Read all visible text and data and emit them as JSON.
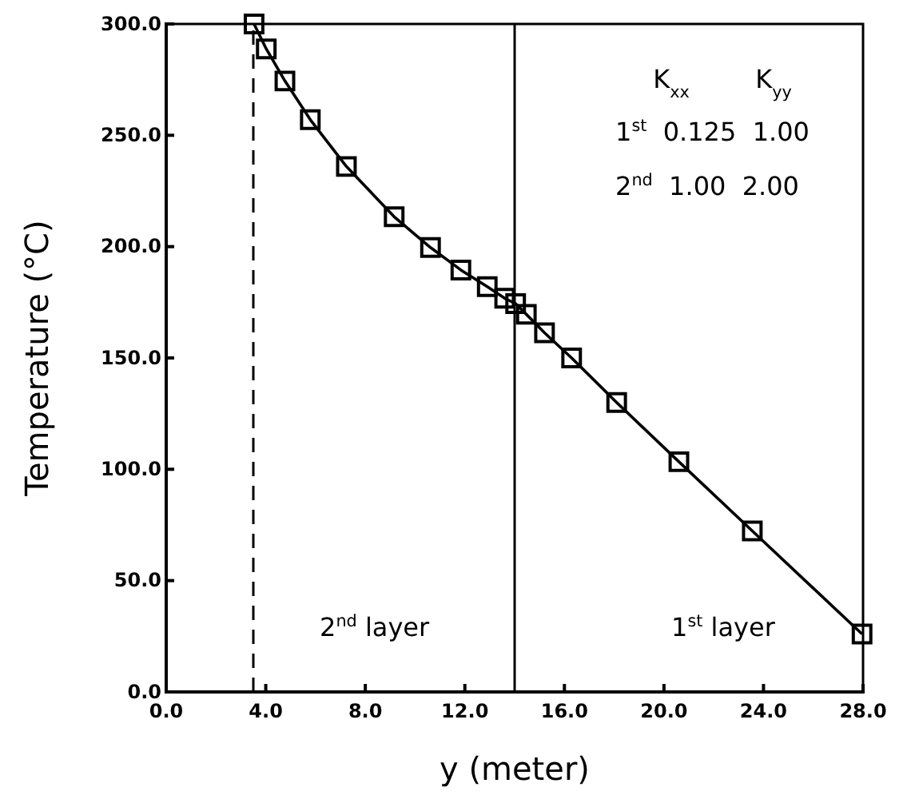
{
  "chart_data": {
    "type": "line",
    "xlabel": "y  (meter)",
    "ylabel": "Temperature  (°C)",
    "x": [
      3.53,
      4.02,
      4.77,
      5.79,
      7.24,
      9.16,
      10.62,
      11.84,
      12.9,
      13.6,
      14.04,
      14.47,
      15.2,
      16.29,
      18.1,
      20.6,
      23.55,
      27.96
    ],
    "series": [
      {
        "color": "#000000",
        "values": [
          300,
          288.8,
          274.4,
          257,
          236,
          213.4,
          199.6,
          189.5,
          182,
          176.8,
          174.4,
          169.6,
          161.3,
          150,
          130,
          103.4,
          72.3,
          26
        ]
      }
    ],
    "marker": "square",
    "line_style": "solid",
    "xlim": [
      0,
      28
    ],
    "ylim": [
      0,
      300
    ],
    "xticks": [
      {
        "value": 0,
        "label": "0.0"
      },
      {
        "value": 4,
        "label": "4.0"
      },
      {
        "value": 8,
        "label": "8.0"
      },
      {
        "value": 12,
        "label": "12.0"
      },
      {
        "value": 16,
        "label": "16.0"
      },
      {
        "value": 20,
        "label": "20.0"
      },
      {
        "value": 24,
        "label": "24.0"
      },
      {
        "value": 28,
        "label": "28.0"
      }
    ],
    "yticks": [
      {
        "value": 0,
        "label": "0.0"
      },
      {
        "value": 50,
        "label": "50.0"
      },
      {
        "value": 100,
        "label": "100.0"
      },
      {
        "value": 150,
        "label": "150.0"
      },
      {
        "value": 200,
        "label": "200.0"
      },
      {
        "value": 250,
        "label": "250.0"
      },
      {
        "value": 300,
        "label": "300.0"
      }
    ],
    "ref_lines": [
      {
        "axis": "x",
        "value": 3.5,
        "line_style": "dashed",
        "color": "#000000"
      },
      {
        "axis": "x",
        "value": 14,
        "line_style": "solid",
        "color": "#000000"
      }
    ],
    "annotations": [
      "K$_{xx}$",
      "K$_{yy}$",
      "1$^{st}$  0.125  1.00",
      "2$^{nd}$  1.00  2.00",
      "2$^{nd}$ layer",
      "1$^{st}$ layer"
    ]
  }
}
